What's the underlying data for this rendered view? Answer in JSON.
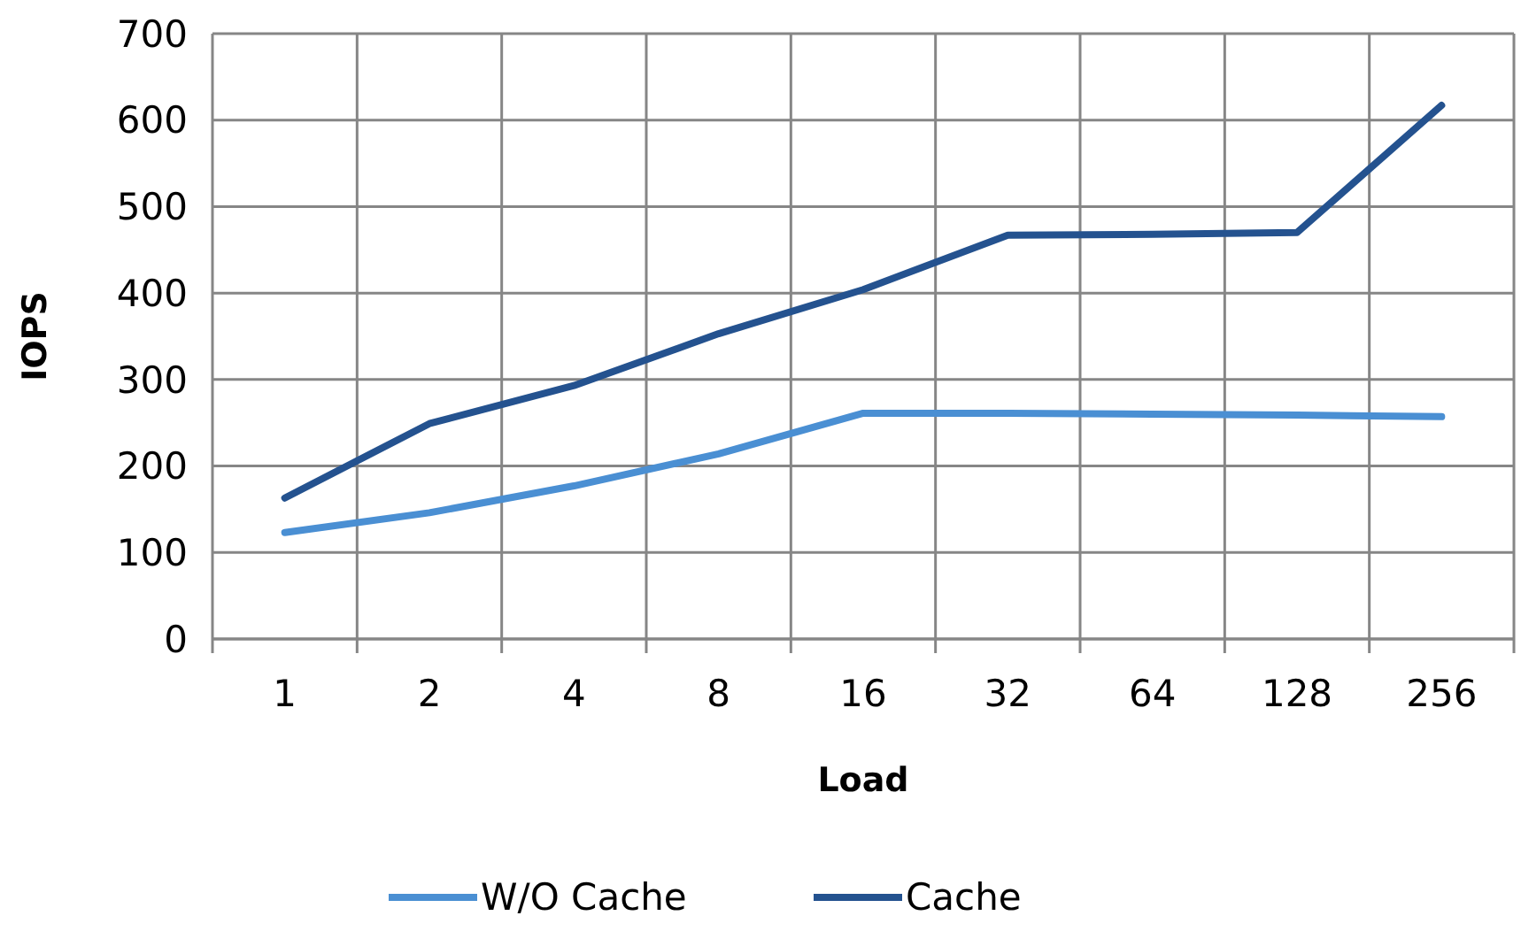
{
  "chart_data": {
    "type": "line",
    "xlabel": "Load",
    "ylabel": "IOPS",
    "categories": [
      "1",
      "2",
      "4",
      "8",
      "16",
      "32",
      "64",
      "128",
      "256"
    ],
    "series": [
      {
        "name": "W/O Cache",
        "color": "#4a8fd3",
        "values": [
          123,
          146,
          177,
          214,
          261,
          261,
          260,
          259,
          257
        ]
      },
      {
        "name": "Cache",
        "color": "#24528f",
        "values": [
          163,
          249,
          293,
          353,
          404,
          467,
          468,
          470,
          617
        ]
      }
    ],
    "ylim": [
      0,
      700
    ],
    "yticks": [
      0,
      100,
      200,
      300,
      400,
      500,
      600,
      700
    ],
    "grid": true,
    "legend": "bottom",
    "marker": "none",
    "line_style": "solid"
  }
}
